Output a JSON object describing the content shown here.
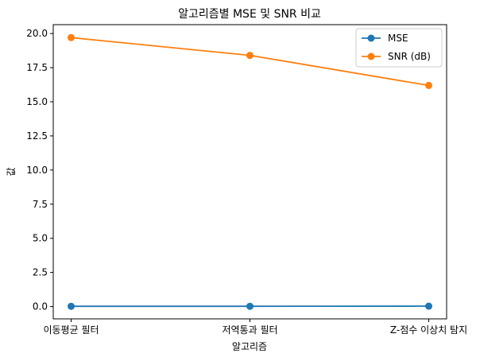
{
  "chart_data": {
    "type": "line",
    "title": "알고리즘별 MSE 및 SNR 비교",
    "xlabel": "알고리즘",
    "ylabel": "값",
    "categories": [
      "이동평균 필터",
      "저역통과 필터",
      "Z-점수 이상치 탐지"
    ],
    "ylim": [
      -0.9,
      20.65
    ],
    "yticks": [
      0.0,
      2.5,
      5.0,
      7.5,
      10.0,
      12.5,
      15.0,
      17.5,
      20.0
    ],
    "ytick_labels": [
      "0.0",
      "2.5",
      "5.0",
      "7.5",
      "10.0",
      "12.5",
      "15.0",
      "17.5",
      "20.0"
    ],
    "grid": false,
    "legend_position": "top-right",
    "series": [
      {
        "name": "MSE",
        "values": [
          0.02,
          0.02,
          0.03
        ],
        "color": "#1f77b4",
        "marker": "circle"
      },
      {
        "name": "SNR (dB)",
        "values": [
          19.7,
          18.4,
          16.2
        ],
        "color": "#ff7f0e",
        "marker": "circle"
      }
    ]
  }
}
